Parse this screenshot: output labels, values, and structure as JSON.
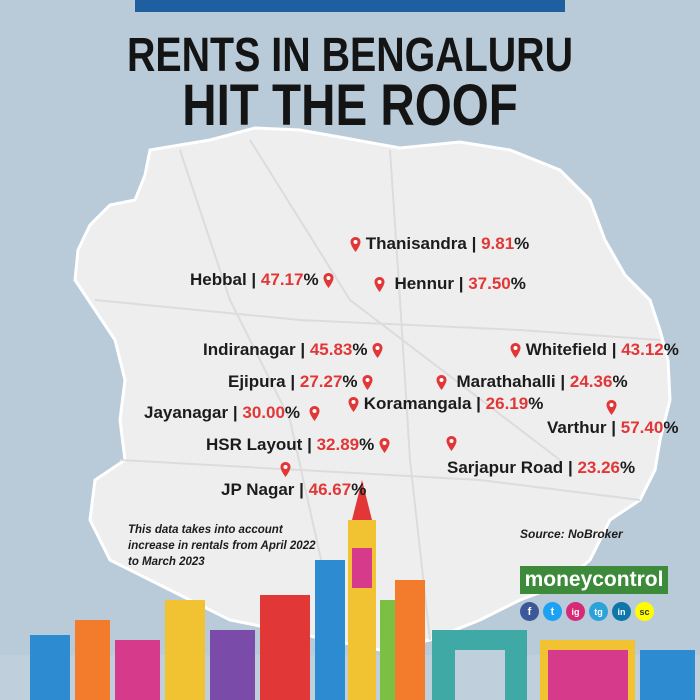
{
  "header": {
    "title_line1": "RENTS IN BENGALURU",
    "title_line2": "HIT THE ROOF"
  },
  "locations": [
    {
      "name": "Thanisandra",
      "value": "9.81"
    },
    {
      "name": "Hebbal",
      "value": "47.17"
    },
    {
      "name": "Hennur",
      "value": "37.50"
    },
    {
      "name": "Indiranagar",
      "value": "45.83"
    },
    {
      "name": "Whitefield",
      "value": "43.12"
    },
    {
      "name": "Ejipura",
      "value": "27.27"
    },
    {
      "name": "Marathahalli",
      "value": "24.36"
    },
    {
      "name": "Jayanagar",
      "value": "30.00"
    },
    {
      "name": "Koramangala",
      "value": "26.19"
    },
    {
      "name": "Varthur",
      "value": "57.40"
    },
    {
      "name": "HSR Layout",
      "value": "32.89"
    },
    {
      "name": "Sarjapur Road",
      "value": "23.26"
    },
    {
      "name": "JP Nagar",
      "value": "46.67"
    }
  ],
  "separator": "|",
  "percent_sign": "%",
  "note": "This data takes into account increase in rentals from April 2022 to March 2023",
  "source": "Source: NoBroker",
  "brand": "moneycontrol",
  "social": [
    "f",
    "t",
    "ig",
    "tg",
    "in",
    "sc"
  ],
  "colors": {
    "accent_red": "#e23737",
    "brand_green": "#3d8a3a",
    "top_bar": "#1f5fa0"
  }
}
